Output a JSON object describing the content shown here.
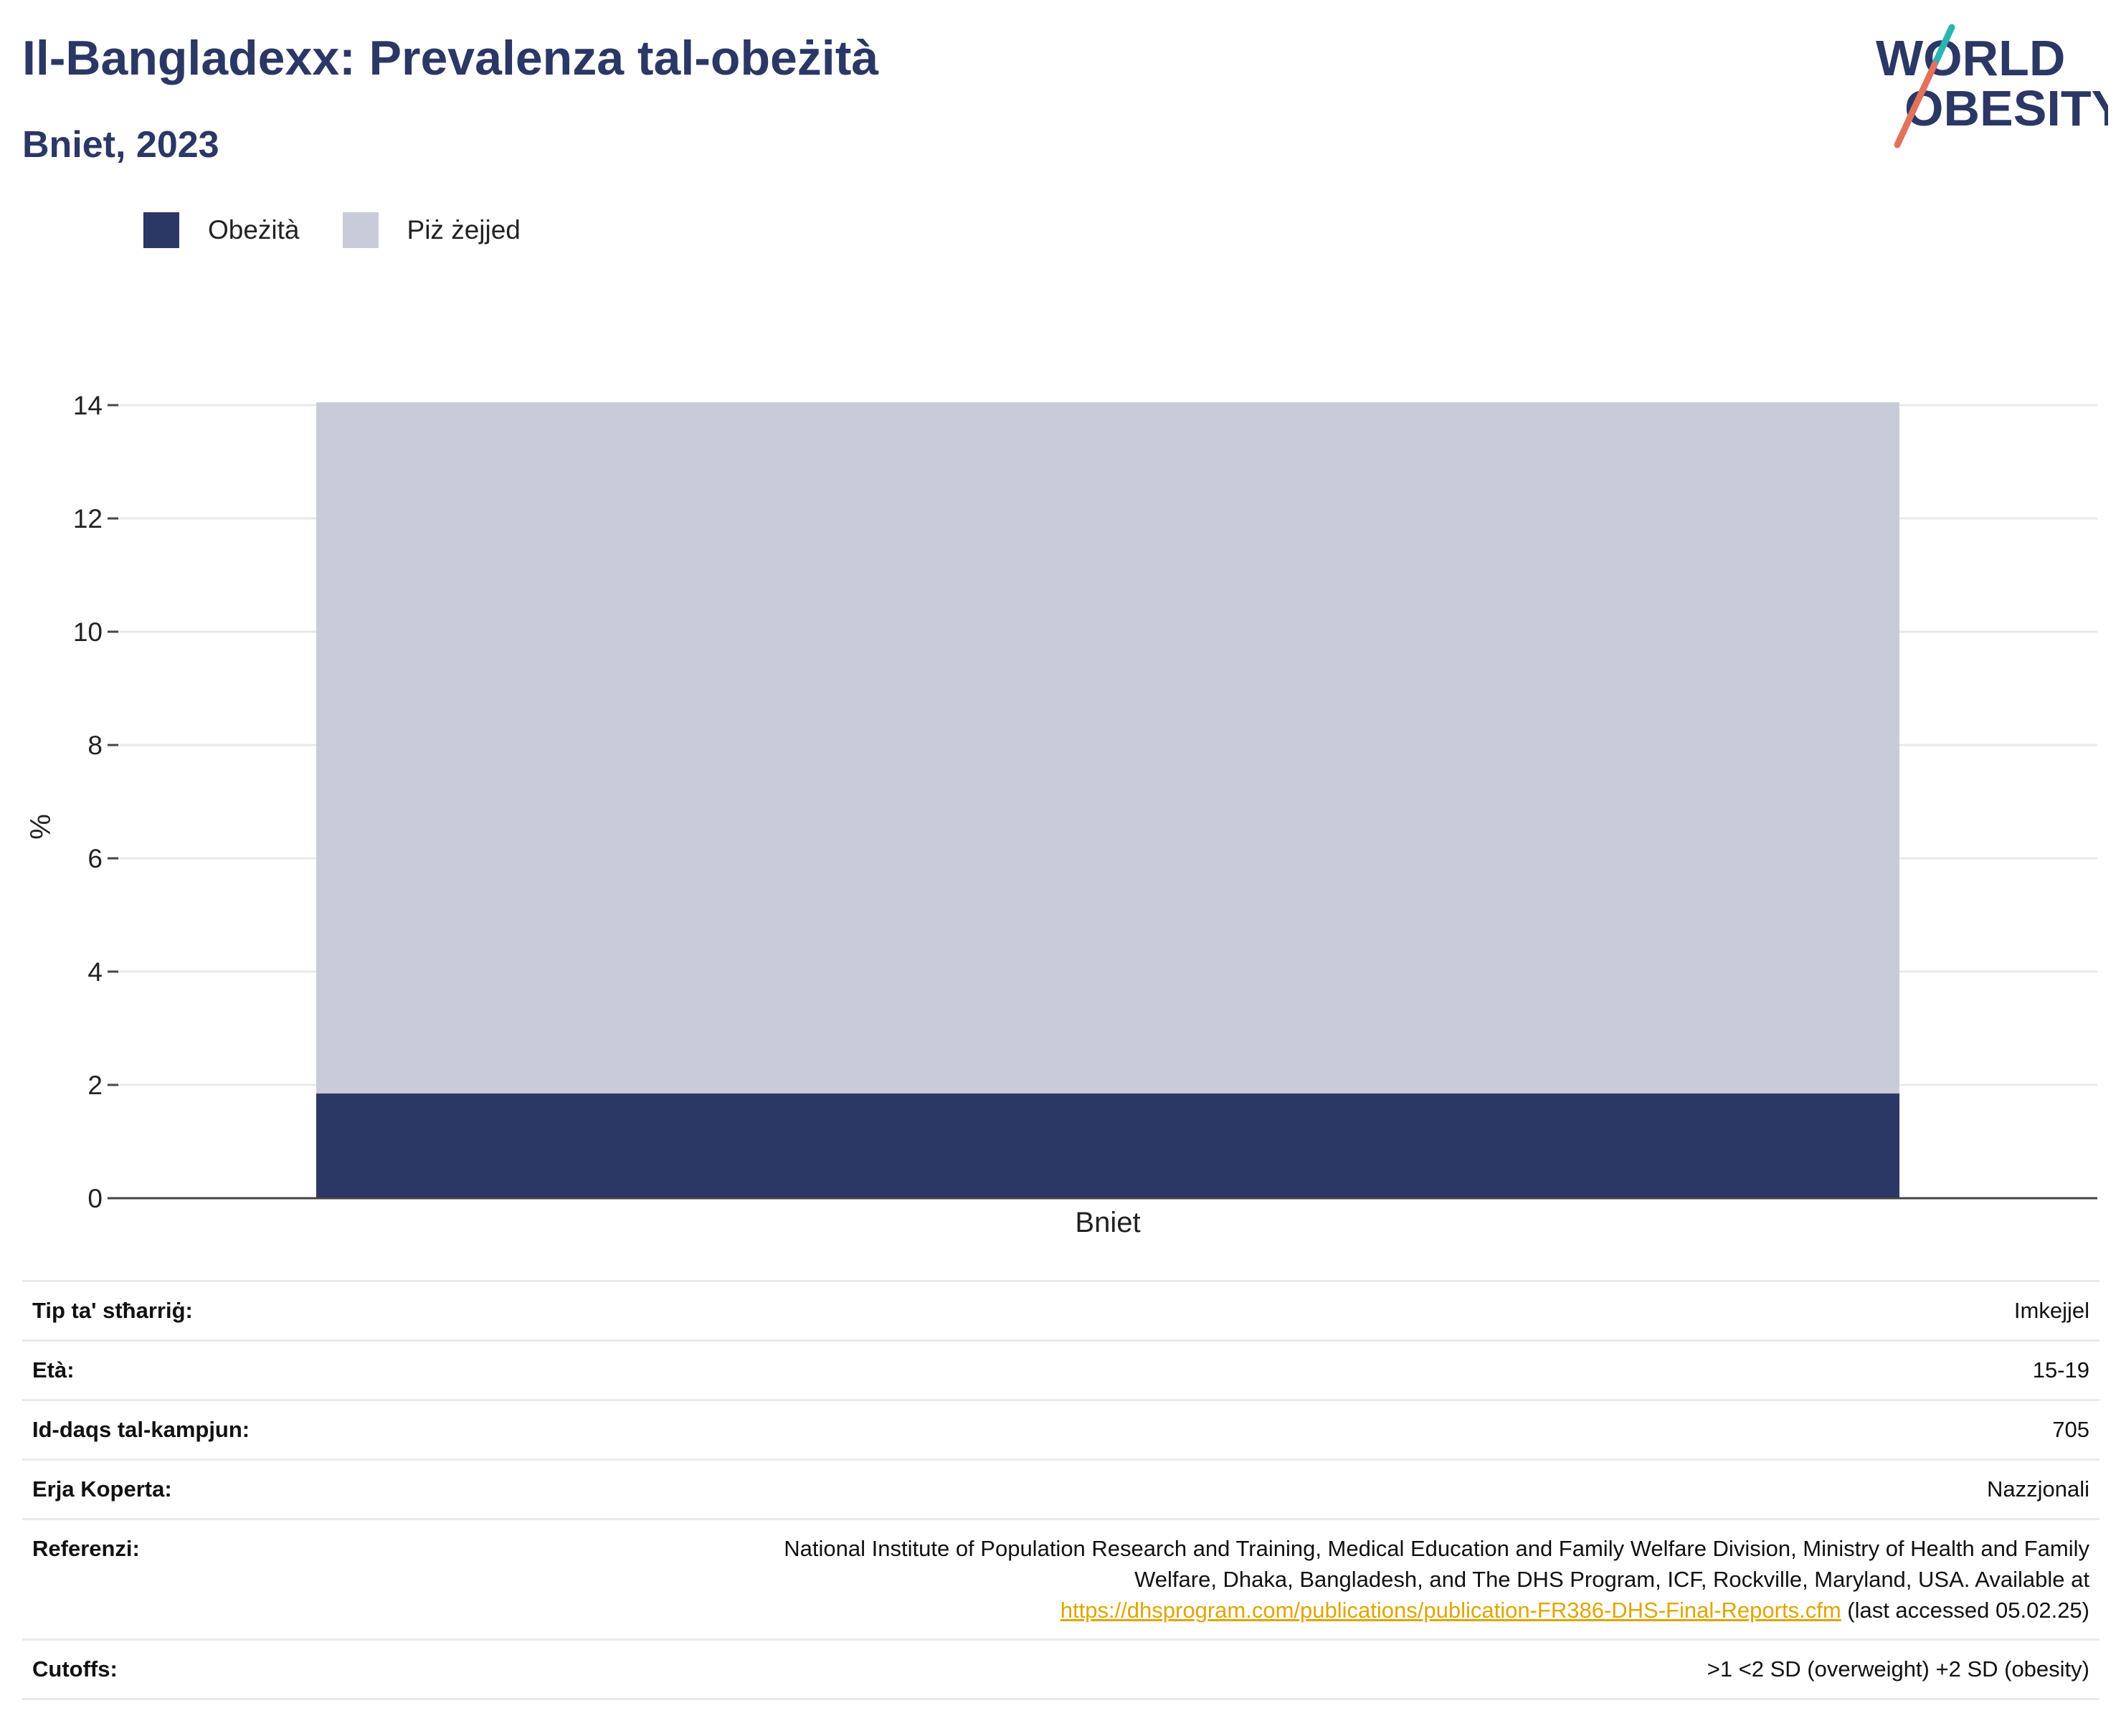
{
  "header": {
    "title": "Il-Bangladexx: Prevalenza tal-obeżità",
    "subtitle": "Bniet, 2023"
  },
  "logo": {
    "line1": "WORLD",
    "line2": "OBESITY",
    "colors": {
      "text": "#2b3765",
      "slash_teal": "#2bb5b0",
      "slash_red": "#e2725b"
    }
  },
  "legend": [
    {
      "label": "Obeżità",
      "color": "#2b3765"
    },
    {
      "label": "Piż żejjed",
      "color": "#c9ccd8"
    }
  ],
  "chart_data": {
    "type": "bar",
    "stacked": true,
    "categories": [
      "Bniet"
    ],
    "series": [
      {
        "name": "Obeżità",
        "values": [
          1.85
        ],
        "color": "#2b3765"
      },
      {
        "name": "Piż żejjed",
        "values": [
          12.2
        ],
        "color": "#c9ccd8"
      }
    ],
    "ylabel": "%",
    "xlabel": "",
    "ylim": [
      0,
      14
    ],
    "yticks": [
      0,
      2,
      4,
      6,
      8,
      10,
      12,
      14
    ],
    "grid": true,
    "legend_position": "top-left"
  },
  "info": {
    "survey_type": {
      "label": "Tip ta' stħarriġ:",
      "value": "Imkejjel"
    },
    "age": {
      "label": "Età:",
      "value": "15-19"
    },
    "sample": {
      "label": "Id-daqs tal-kampjun:",
      "value": "705"
    },
    "area": {
      "label": "Erja Koperta:",
      "value": "Nazzjonali"
    },
    "reference": {
      "label": "Referenzi:",
      "line1": "National Institute of Population Research and Training, Medical Education and Family Welfare Division, Ministry of Health and Family",
      "line2": "Welfare, Dhaka, Bangladesh, and The DHS Program, ICF, Rockville, Maryland, USA. Available at",
      "link": "https://dhsprogram.com/publications/publication-FR386-DHS-Final-Reports.cfm",
      "suffix": " (last accessed 05.02.25)"
    },
    "cutoffs": {
      "label": "Cutoffs:",
      "value": ">1 <2 SD (overweight) +2 SD (obesity)"
    }
  }
}
